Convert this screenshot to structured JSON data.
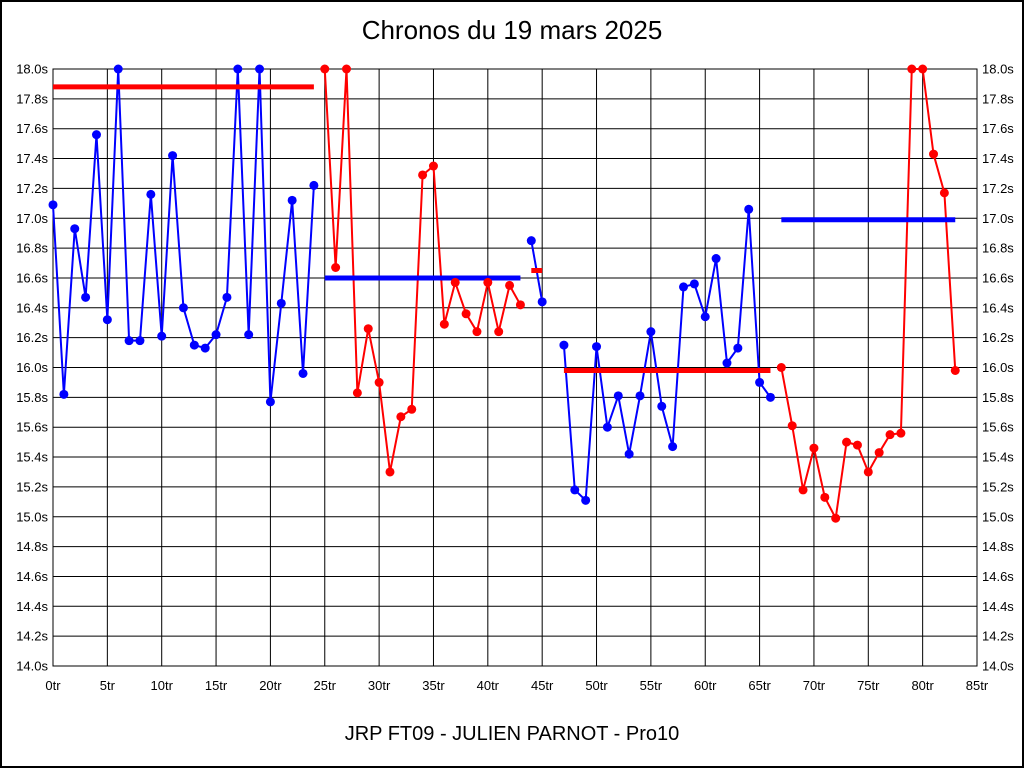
{
  "chart_data": {
    "type": "line",
    "title": "Chronos du 19 mars 2025",
    "footer": "JRP FT09 - JULIEN PARNOT - Pro10",
    "xlabel": "",
    "ylabel": "",
    "xlim": [
      0,
      85
    ],
    "ylim": [
      14.0,
      18.0
    ],
    "grid": true,
    "legend": "none",
    "x_unit": "tr",
    "y_unit": "s",
    "colors": {
      "blue_series": "#0000ff",
      "red_series": "#ff0000",
      "grid": "#000000",
      "text": "#000000",
      "background": "#ffffff"
    },
    "x_ticks": [
      {
        "value": 0,
        "label": "0tr"
      },
      {
        "value": 5,
        "label": "5tr"
      },
      {
        "value": 10,
        "label": "10tr"
      },
      {
        "value": 15,
        "label": "15tr"
      },
      {
        "value": 20,
        "label": "20tr"
      },
      {
        "value": 25,
        "label": "25tr"
      },
      {
        "value": 30,
        "label": "30tr"
      },
      {
        "value": 35,
        "label": "35tr"
      },
      {
        "value": 40,
        "label": "40tr"
      },
      {
        "value": 45,
        "label": "45tr"
      },
      {
        "value": 50,
        "label": "50tr"
      },
      {
        "value": 55,
        "label": "55tr"
      },
      {
        "value": 60,
        "label": "60tr"
      },
      {
        "value": 65,
        "label": "65tr"
      },
      {
        "value": 70,
        "label": "70tr"
      },
      {
        "value": 75,
        "label": "75tr"
      },
      {
        "value": 80,
        "label": "80tr"
      },
      {
        "value": 85,
        "label": "85tr"
      }
    ],
    "y_ticks": [
      {
        "value": 18.0,
        "label": "18.0s"
      },
      {
        "value": 17.8,
        "label": "17.8s"
      },
      {
        "value": 17.6,
        "label": "17.6s"
      },
      {
        "value": 17.4,
        "label": "17.4s"
      },
      {
        "value": 17.2,
        "label": "17.2s"
      },
      {
        "value": 17.0,
        "label": "17.0s"
      },
      {
        "value": 16.8,
        "label": "16.8s"
      },
      {
        "value": 16.6,
        "label": "16.6s"
      },
      {
        "value": 16.4,
        "label": "16.4s"
      },
      {
        "value": 16.2,
        "label": "16.2s"
      },
      {
        "value": 16.0,
        "label": "16.0s"
      },
      {
        "value": 15.8,
        "label": "15.8s"
      },
      {
        "value": 15.6,
        "label": "15.6s"
      },
      {
        "value": 15.4,
        "label": "15.4s"
      },
      {
        "value": 15.2,
        "label": "15.2s"
      },
      {
        "value": 15.0,
        "label": "15.0s"
      },
      {
        "value": 14.8,
        "label": "14.8s"
      },
      {
        "value": 14.6,
        "label": "14.6s"
      },
      {
        "value": 14.4,
        "label": "14.4s"
      },
      {
        "value": 14.2,
        "label": "14.2s"
      },
      {
        "value": 14.0,
        "label": "14.0s"
      }
    ],
    "series": [
      {
        "name": "stint-1-blue",
        "color": "#0000ff",
        "points": [
          [
            0,
            17.09
          ],
          [
            1,
            15.82
          ],
          [
            2,
            16.93
          ],
          [
            3,
            16.47
          ],
          [
            4,
            17.56
          ],
          [
            5,
            16.32
          ],
          [
            6,
            18.0
          ],
          [
            7,
            16.18
          ],
          [
            8,
            16.18
          ],
          [
            9,
            17.16
          ],
          [
            10,
            16.21
          ],
          [
            11,
            17.42
          ],
          [
            12,
            16.4
          ],
          [
            13,
            16.15
          ],
          [
            14,
            16.13
          ],
          [
            15,
            16.22
          ],
          [
            16,
            16.47
          ],
          [
            17,
            18.0
          ],
          [
            18,
            16.22
          ],
          [
            19,
            18.0
          ],
          [
            20,
            15.77
          ],
          [
            21,
            16.43
          ],
          [
            22,
            17.12
          ],
          [
            23,
            15.96
          ],
          [
            24,
            17.22
          ]
        ]
      },
      {
        "name": "stint-2-red",
        "color": "#ff0000",
        "points": [
          [
            25,
            18.0
          ],
          [
            26,
            16.67
          ],
          [
            27,
            18.0
          ],
          [
            28,
            15.83
          ],
          [
            29,
            16.26
          ],
          [
            30,
            15.9
          ],
          [
            31,
            15.3
          ],
          [
            32,
            15.67
          ],
          [
            33,
            15.72
          ],
          [
            34,
            17.29
          ],
          [
            35,
            17.35
          ],
          [
            36,
            16.29
          ],
          [
            37,
            16.57
          ],
          [
            38,
            16.36
          ],
          [
            39,
            16.24
          ],
          [
            40,
            16.57
          ],
          [
            41,
            16.24
          ],
          [
            42,
            16.55
          ],
          [
            43,
            16.42
          ]
        ]
      },
      {
        "name": "stint-3-blue",
        "color": "#0000ff",
        "points": [
          [
            44,
            16.85
          ],
          [
            45,
            16.44
          ]
        ]
      },
      {
        "name": "stint-4-blue",
        "color": "#0000ff",
        "points": [
          [
            47,
            16.15
          ],
          [
            48,
            15.18
          ],
          [
            49,
            15.11
          ],
          [
            50,
            16.14
          ],
          [
            51,
            15.6
          ],
          [
            52,
            15.81
          ],
          [
            53,
            15.42
          ],
          [
            54,
            15.81
          ],
          [
            55,
            16.24
          ],
          [
            56,
            15.74
          ],
          [
            57,
            15.47
          ],
          [
            58,
            16.54
          ],
          [
            59,
            16.56
          ],
          [
            60,
            16.34
          ],
          [
            61,
            16.73
          ],
          [
            62,
            16.03
          ],
          [
            63,
            16.13
          ],
          [
            64,
            17.06
          ],
          [
            65,
            15.9
          ],
          [
            66,
            15.8
          ]
        ]
      },
      {
        "name": "stint-5-red",
        "color": "#ff0000",
        "points": [
          [
            67,
            16.0
          ],
          [
            68,
            15.61
          ],
          [
            69,
            15.18
          ],
          [
            70,
            15.46
          ],
          [
            71,
            15.13
          ],
          [
            72,
            14.99
          ],
          [
            73,
            15.5
          ],
          [
            74,
            15.48
          ],
          [
            75,
            15.3
          ],
          [
            76,
            15.43
          ],
          [
            77,
            15.55
          ],
          [
            78,
            15.56
          ],
          [
            79,
            18.0
          ],
          [
            80,
            18.0
          ],
          [
            81,
            17.43
          ],
          [
            82,
            17.17
          ],
          [
            83,
            15.98
          ]
        ]
      }
    ],
    "reference_lines": [
      {
        "name": "ref-stint-1",
        "color": "#ff0000",
        "y": 17.88,
        "x_start": 0,
        "x_end": 24
      },
      {
        "name": "ref-stint-2",
        "color": "#0000ff",
        "y": 16.6,
        "x_start": 25,
        "x_end": 43
      },
      {
        "name": "ref-stint-3",
        "color": "#ff0000",
        "y": 16.65,
        "x_start": 44,
        "x_end": 45
      },
      {
        "name": "ref-stint-4",
        "color": "#ff0000",
        "y": 15.98,
        "x_start": 47,
        "x_end": 66
      },
      {
        "name": "ref-stint-5",
        "color": "#0000ff",
        "y": 16.99,
        "x_start": 67,
        "x_end": 83
      }
    ]
  }
}
